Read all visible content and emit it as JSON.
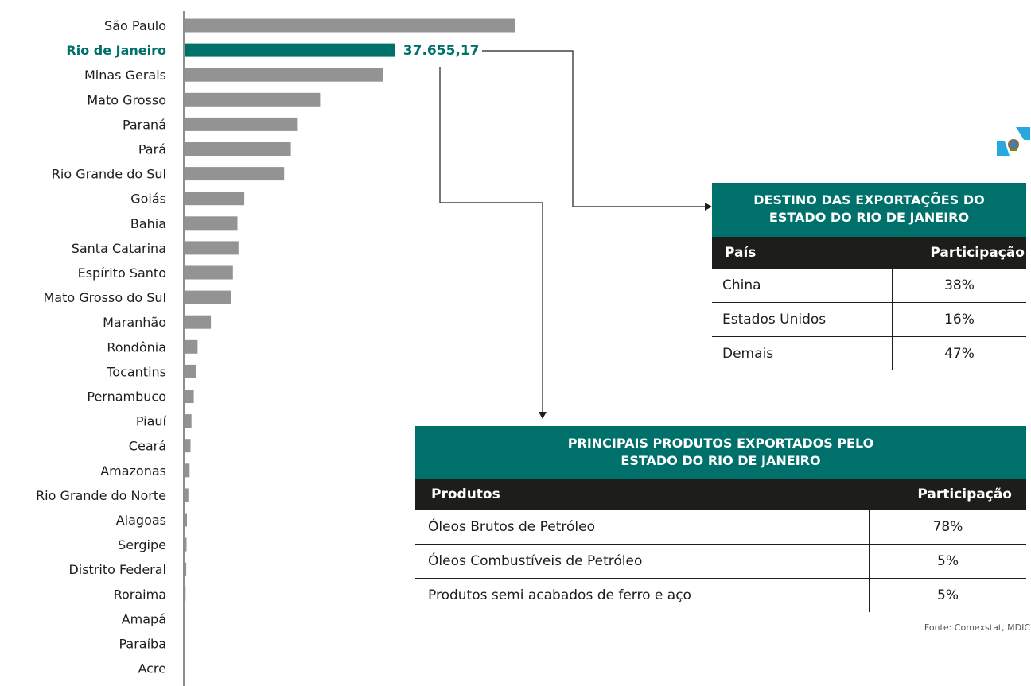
{
  "chart_data": {
    "type": "bar",
    "orientation": "horizontal",
    "categories": [
      "São Paulo",
      "Rio de Janeiro",
      "Minas Gerais",
      "Mato Grosso",
      "Paraná",
      "Pará",
      "Rio Grande do Sul",
      "Goiás",
      "Bahia",
      "Santa Catarina",
      "Espírito Santo",
      "Mato Grosso do Sul",
      "Maranhão",
      "Rondônia",
      "Tocantins",
      "Pernambuco",
      "Piauí",
      "Ceará",
      "Amazonas",
      "Rio Grande do Norte",
      "Alagoas",
      "Sergipe",
      "Distrito Federal",
      "Roraima",
      "Amapá",
      "Paraíba",
      "Acre"
    ],
    "values": [
      59010,
      37655.17,
      35450,
      24230,
      20100,
      18990,
      17800,
      10680,
      9460,
      9640,
      8650,
      8380,
      4700,
      2330,
      2060,
      1650,
      1240,
      1060,
      890,
      680,
      430,
      350,
      300,
      180,
      140,
      120,
      60
    ],
    "highlight_index": 1,
    "highlight_value_label": "37.655,17",
    "bar_color": "#939393",
    "highlight_color": "#00706b",
    "grid": false,
    "title": "",
    "xlabel": "",
    "ylabel": ""
  },
  "destino": {
    "title_line1": "DESTINO DAS EXPORTAÇÕES DO",
    "title_line2": "ESTADO DO RIO DE JANEIRO",
    "col_country": "País",
    "col_share": "Participação",
    "rows": [
      {
        "name": "China",
        "value": "38%"
      },
      {
        "name": "Estados Unidos",
        "value": "16%"
      },
      {
        "name": "Demais",
        "value": "47%"
      }
    ]
  },
  "produtos": {
    "title_line1": "PRINCIPAIS PRODUTOS EXPORTADOS PELO",
    "title_line2": "ESTADO DO RIO DE JANEIRO",
    "col_product": "Produtos",
    "col_share": "Participação",
    "rows": [
      {
        "name": "Óleos Brutos de Petróleo",
        "value": "78%"
      },
      {
        "name": "Óleos Combustíveis de Petróleo",
        "value": "5%"
      },
      {
        "name": "Produtos semi acabados de ferro e aço",
        "value": "5%"
      }
    ]
  },
  "source": "Fonte: Comexstat, MDIC",
  "colors": {
    "accent": "#00706b",
    "dark": "#1d1d1b",
    "bar": "#939393"
  },
  "icons": {
    "flag": "rio-de-janeiro-flag-icon"
  }
}
